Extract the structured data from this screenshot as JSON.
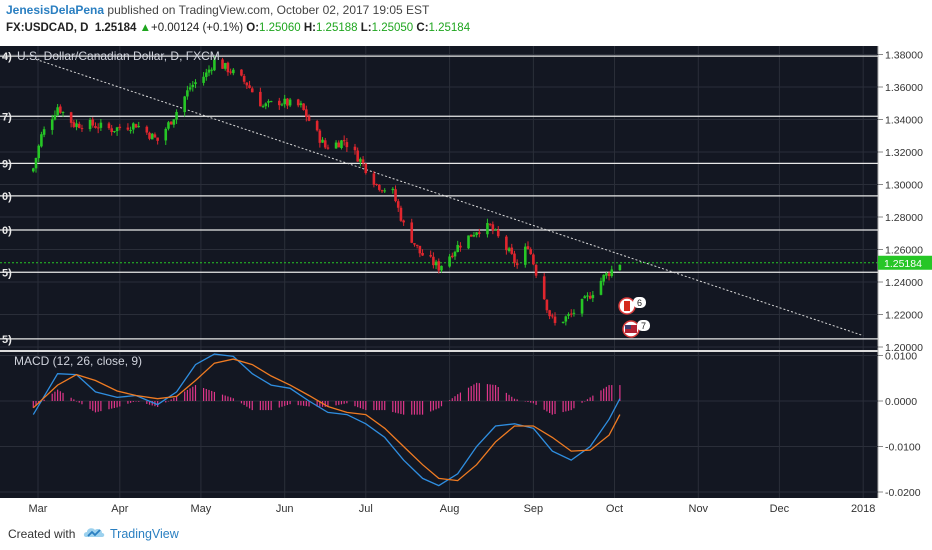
{
  "header": {
    "author": "JenesisDelaPena",
    "published_text": " published on TradingView.com, October 02, 2017 19:05 EST",
    "symbol": "FX:USDCAD, D",
    "price": "1.25184",
    "change_arrow": "▲",
    "change": "+0.00124 (+0.1%)",
    "o_label": "O:",
    "o_value": "1.25060",
    "h_label": "H:",
    "h_value": "1.25188",
    "l_label": "L:",
    "l_value": "1.25050",
    "c_label": "C:",
    "c_value": "1.25184"
  },
  "colors": {
    "background": "#131722",
    "up_candle": "#26c626",
    "down_candle": "#e0262e",
    "macd_line": "#2f8ee0",
    "signal_line": "#ef7b22",
    "histogram": "#e0368a",
    "current_price_line": "#26c626",
    "brand": "#2a7fc1"
  },
  "footer": {
    "created_with": "Created with",
    "brand": "TradingView",
    "logo_icon": "tradingview-cloud-icon"
  },
  "chart_data": [
    {
      "type": "candlestick",
      "title": "U.S. Dollar/Canadian Dollar, D, FXCM",
      "ylim": [
        1.195,
        1.385
      ],
      "y_ticks": [
        "1.38000",
        "1.36000",
        "1.34000",
        "1.32000",
        "1.30000",
        "1.28000",
        "1.26000",
        "1.24000",
        "1.22000",
        "1.20000"
      ],
      "x_tick_labels": [
        "Mar",
        "Apr",
        "May",
        "Jun",
        "Jul",
        "Aug",
        "Sep",
        "Oct",
        "Nov",
        "Dec",
        "2018"
      ],
      "current_price": "1.25184",
      "horizontal_levels": [
        1.379,
        1.342,
        1.313,
        1.293,
        1.272,
        1.246,
        1.205
      ],
      "left_level_labels": [
        "4)",
        "7)",
        "9)",
        "0)",
        "0)",
        "5)",
        "5)"
      ],
      "trendline": {
        "start": [
          "2017-02-28",
          1.377
        ],
        "end": [
          "2017-12-31",
          1.207
        ]
      },
      "annotation_icons": [
        {
          "name": "canada-flag-icon",
          "label": "6"
        },
        {
          "name": "us-flag-icon",
          "label": "7"
        }
      ],
      "close_path": [
        [
          "2017-02-27",
          1.31
        ],
        [
          "2017-03-02",
          1.33
        ],
        [
          "2017-03-08",
          1.348
        ],
        [
          "2017-03-14",
          1.337
        ],
        [
          "2017-03-20",
          1.337
        ],
        [
          "2017-03-28",
          1.334
        ],
        [
          "2017-04-06",
          1.337
        ],
        [
          "2017-04-14",
          1.327
        ],
        [
          "2017-04-20",
          1.342
        ],
        [
          "2017-04-26",
          1.36
        ],
        [
          "2017-05-02",
          1.368
        ],
        [
          "2017-05-05",
          1.376
        ],
        [
          "2017-05-11",
          1.37
        ],
        [
          "2017-05-17",
          1.362
        ],
        [
          "2017-05-23",
          1.348
        ],
        [
          "2017-05-29",
          1.351
        ],
        [
          "2017-06-06",
          1.348
        ],
        [
          "2017-06-12",
          1.331
        ],
        [
          "2017-06-15",
          1.323
        ],
        [
          "2017-06-22",
          1.327
        ],
        [
          "2017-06-28",
          1.315
        ],
        [
          "2017-07-04",
          1.3
        ],
        [
          "2017-07-10",
          1.295
        ],
        [
          "2017-07-14",
          1.275
        ],
        [
          "2017-07-20",
          1.258
        ],
        [
          "2017-07-27",
          1.249
        ],
        [
          "2017-08-03",
          1.262
        ],
        [
          "2017-08-10",
          1.272
        ],
        [
          "2017-08-15",
          1.274
        ],
        [
          "2017-08-22",
          1.258
        ],
        [
          "2017-08-25",
          1.25
        ],
        [
          "2017-08-29",
          1.263
        ],
        [
          "2017-09-01",
          1.246
        ],
        [
          "2017-09-06",
          1.22
        ],
        [
          "2017-09-08",
          1.214
        ],
        [
          "2017-09-14",
          1.22
        ],
        [
          "2017-09-20",
          1.23
        ],
        [
          "2017-09-26",
          1.243
        ],
        [
          "2017-10-02",
          1.2518
        ]
      ]
    },
    {
      "type": "line",
      "title": "MACD (12, 26, close, 9)",
      "ylim": [
        -0.0205,
        0.0115
      ],
      "y_ticks": [
        "0.0100",
        "0.0000",
        "-0.0100",
        "-0.0200"
      ],
      "series": [
        {
          "name": "MACD",
          "points": [
            [
              "2017-02-27",
              -0.003
            ],
            [
              "2017-03-08",
              0.006
            ],
            [
              "2017-03-15",
              0.0058
            ],
            [
              "2017-03-22",
              0.002
            ],
            [
              "2017-03-30",
              0.0008
            ],
            [
              "2017-04-06",
              0.0012
            ],
            [
              "2017-04-14",
              -0.0008
            ],
            [
              "2017-04-21",
              0.002
            ],
            [
              "2017-04-28",
              0.008
            ],
            [
              "2017-05-05",
              0.0103
            ],
            [
              "2017-05-12",
              0.0098
            ],
            [
              "2017-05-19",
              0.006
            ],
            [
              "2017-05-26",
              0.0035
            ],
            [
              "2017-06-02",
              0.0028
            ],
            [
              "2017-06-09",
              0.0
            ],
            [
              "2017-06-16",
              -0.0025
            ],
            [
              "2017-06-23",
              -0.003
            ],
            [
              "2017-06-30",
              -0.005
            ],
            [
              "2017-07-07",
              -0.008
            ],
            [
              "2017-07-14",
              -0.013
            ],
            [
              "2017-07-21",
              -0.017
            ],
            [
              "2017-07-27",
              -0.0186
            ],
            [
              "2017-08-03",
              -0.016
            ],
            [
              "2017-08-10",
              -0.01
            ],
            [
              "2017-08-17",
              -0.0055
            ],
            [
              "2017-08-24",
              -0.005
            ],
            [
              "2017-08-31",
              -0.006
            ],
            [
              "2017-09-07",
              -0.011
            ],
            [
              "2017-09-14",
              -0.013
            ],
            [
              "2017-09-21",
              -0.01
            ],
            [
              "2017-09-28",
              -0.004
            ],
            [
              "2017-10-02",
              0.0005
            ]
          ]
        },
        {
          "name": "Signal",
          "points": [
            [
              "2017-02-27",
              -0.0015
            ],
            [
              "2017-03-08",
              0.0035
            ],
            [
              "2017-03-15",
              0.0058
            ],
            [
              "2017-03-22",
              0.0045
            ],
            [
              "2017-03-30",
              0.0022
            ],
            [
              "2017-04-06",
              0.0012
            ],
            [
              "2017-04-14",
              0.0005
            ],
            [
              "2017-04-21",
              0.001
            ],
            [
              "2017-04-28",
              0.0045
            ],
            [
              "2017-05-05",
              0.0083
            ],
            [
              "2017-05-12",
              0.0092
            ],
            [
              "2017-05-19",
              0.008
            ],
            [
              "2017-05-26",
              0.0055
            ],
            [
              "2017-06-02",
              0.0035
            ],
            [
              "2017-06-09",
              0.0012
            ],
            [
              "2017-06-16",
              -0.0012
            ],
            [
              "2017-06-23",
              -0.0025
            ],
            [
              "2017-06-30",
              -0.003
            ],
            [
              "2017-07-07",
              -0.006
            ],
            [
              "2017-07-14",
              -0.01
            ],
            [
              "2017-07-21",
              -0.014
            ],
            [
              "2017-07-27",
              -0.017
            ],
            [
              "2017-08-03",
              -0.0175
            ],
            [
              "2017-08-10",
              -0.014
            ],
            [
              "2017-08-17",
              -0.009
            ],
            [
              "2017-08-24",
              -0.0055
            ],
            [
              "2017-08-31",
              -0.0055
            ],
            [
              "2017-09-07",
              -0.008
            ],
            [
              "2017-09-14",
              -0.011
            ],
            [
              "2017-09-21",
              -0.0108
            ],
            [
              "2017-09-28",
              -0.0075
            ],
            [
              "2017-10-02",
              -0.003
            ]
          ]
        },
        {
          "name": "Histogram",
          "points": [
            [
              "2017-02-27",
              -0.0015
            ],
            [
              "2017-03-08",
              0.0025
            ],
            [
              "2017-03-15",
              0.0
            ],
            [
              "2017-03-22",
              -0.0025
            ],
            [
              "2017-03-30",
              -0.0014
            ],
            [
              "2017-04-06",
              0.0
            ],
            [
              "2017-04-14",
              -0.0013
            ],
            [
              "2017-04-21",
              0.001
            ],
            [
              "2017-04-28",
              0.0035
            ],
            [
              "2017-05-05",
              0.002
            ],
            [
              "2017-05-12",
              0.0006
            ],
            [
              "2017-05-19",
              -0.002
            ],
            [
              "2017-05-26",
              -0.002
            ],
            [
              "2017-06-02",
              -0.0007
            ],
            [
              "2017-06-09",
              -0.0012
            ],
            [
              "2017-06-16",
              -0.0013
            ],
            [
              "2017-06-23",
              -0.0005
            ],
            [
              "2017-06-30",
              -0.002
            ],
            [
              "2017-07-07",
              -0.002
            ],
            [
              "2017-07-14",
              -0.003
            ],
            [
              "2017-07-21",
              -0.003
            ],
            [
              "2017-07-27",
              -0.0016
            ],
            [
              "2017-08-03",
              0.0015
            ],
            [
              "2017-08-10",
              0.004
            ],
            [
              "2017-08-17",
              0.0035
            ],
            [
              "2017-08-24",
              0.0005
            ],
            [
              "2017-08-31",
              -0.0005
            ],
            [
              "2017-09-07",
              -0.003
            ],
            [
              "2017-09-14",
              -0.002
            ],
            [
              "2017-09-21",
              0.0008
            ],
            [
              "2017-09-28",
              0.0035
            ],
            [
              "2017-10-02",
              0.0035
            ]
          ]
        }
      ]
    }
  ]
}
